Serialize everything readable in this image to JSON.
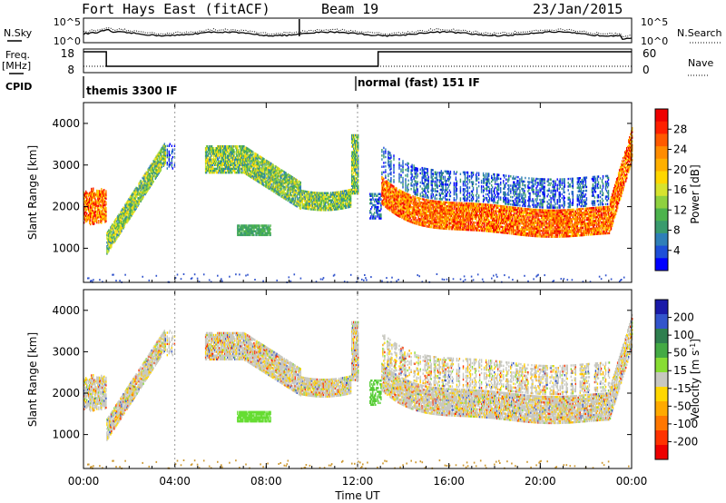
{
  "header": {
    "station": "Fort Hays East (fitACF)",
    "beam": "Beam 19",
    "date": "23/Jan/2015"
  },
  "top_panel": {
    "nsky_label": "N.Sky",
    "nsearch_label": "N.Search",
    "freq_label_1": "Freq.",
    "freq_label_2": "[MHz]",
    "nave_label": "Nave",
    "cpid_label": "CPID",
    "left_ticks_noise": [
      "10^5",
      "10^0"
    ],
    "right_ticks_noise": [
      "10^5",
      "10^0"
    ],
    "left_ticks_freq": [
      "18",
      "8"
    ],
    "right_ticks_nave": [
      "60",
      "0"
    ],
    "cpid_segments": [
      {
        "start_hour": 0,
        "end_hour": 12,
        "label": "themis 3300 IF"
      },
      {
        "start_hour": 12,
        "end_hour": 24,
        "label": "normal (fast) 151 IF"
      }
    ]
  },
  "chart_data": [
    {
      "type": "heatmap",
      "name": "power",
      "ylabel": "Slant Range [km]",
      "xlabel": "Time UT",
      "x_ticks": [
        "00:00",
        "04:00",
        "08:00",
        "12:00",
        "16:00",
        "20:00",
        "00:00"
      ],
      "xlim_hours": [
        0,
        24
      ],
      "y_ticks": [
        1000,
        2000,
        3000,
        4000
      ],
      "ylim_km": [
        180,
        4500
      ],
      "colorbar": {
        "label": "Power [dB]",
        "ticks": [
          "4",
          "8",
          "12",
          "16",
          "20",
          "24",
          "28"
        ],
        "colors": [
          "#0000ff",
          "#1e4fd8",
          "#2f7fb8",
          "#3a9b6e",
          "#4db34d",
          "#8fd13f",
          "#d7e32e",
          "#ffd700",
          "#ffb000",
          "#ff8c00",
          "#ff5a00",
          "#ff2000",
          "#ee0000"
        ]
      }
    },
    {
      "type": "heatmap",
      "name": "velocity",
      "ylabel": "Slant Range [km]",
      "xlabel": "Time UT",
      "x_ticks": [
        "00:00",
        "04:00",
        "08:00",
        "12:00",
        "16:00",
        "20:00",
        "00:00"
      ],
      "xlim_hours": [
        0,
        24
      ],
      "y_ticks": [
        1000,
        2000,
        3000,
        4000
      ],
      "ylim_km": [
        180,
        4500
      ],
      "colorbar": {
        "label": "Velocity [m s^-1]",
        "ticks": [
          "200",
          "100",
          "50",
          "15",
          "-15",
          "-50",
          "-100",
          "-200"
        ],
        "colors": [
          "#1a1aa8",
          "#3355cc",
          "#2f7f4f",
          "#44aa44",
          "#88dd33",
          "#c8c8c0",
          "#ffd700",
          "#ffaa00",
          "#ff7700",
          "#ff3300",
          "#ee0000"
        ]
      }
    }
  ],
  "axis_title": "Time UT",
  "ylabel_range": "Slant Range [km]",
  "power_label": "Power [dB]",
  "velocity_label": "Velocity [m s",
  "velocity_unit_sup": "-1",
  "velocity_label_end": "]"
}
